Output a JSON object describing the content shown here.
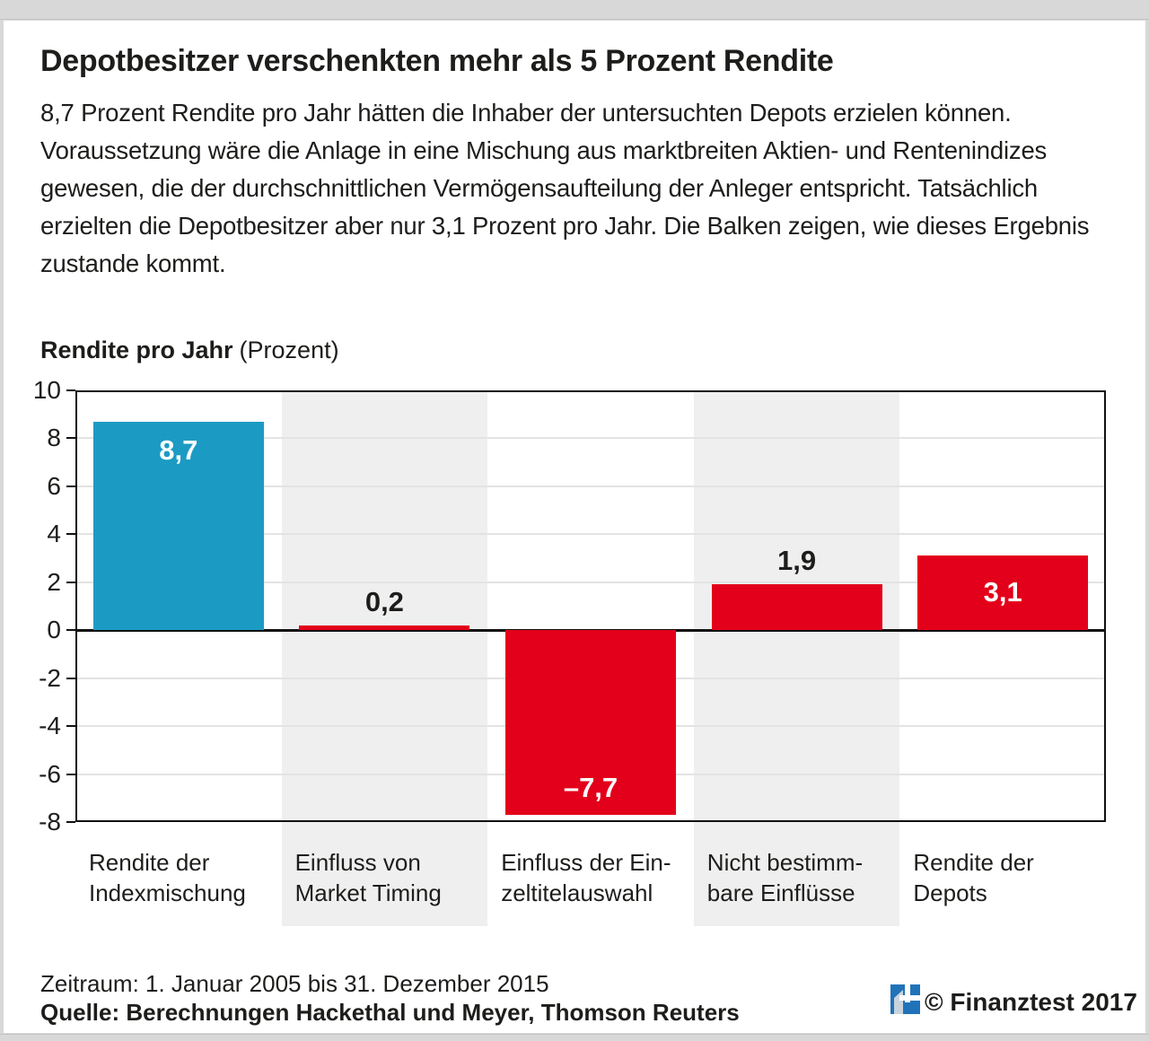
{
  "page": {
    "title": "Depotbesitzer verschenkten mehr als 5 Prozent Rendite",
    "intro": "8,7 Prozent Rendite pro Jahr hätten die Inhaber der untersuchten Depots erzie­len können. Voraussetzung wäre die Anlage in eine Mischung aus marktbreiten Aktien- und Rentenindizes gewesen, die der durchschnittlichen Vermögensauf­teilung der Anleger entspricht. Tatsächlich erzielten die Depotbesitzer aber nur 3,1 Prozent pro Jahr. Die Balken zeigen, wie dieses Ergebnis zustande kommt."
  },
  "chart_data": {
    "type": "bar",
    "title": "Rendite pro Jahr",
    "title_unit": "(Prozent)",
    "categories": [
      "Rendite der\nIndexmischung",
      "Einfluss von\nMarket Timing",
      "Einfluss der Ein-\nzeltitelauswahl",
      "Nicht bestimm-\nbare Einflüsse",
      "Rendite der\nDepots"
    ],
    "values": [
      8.7,
      0.2,
      -7.7,
      1.9,
      3.1
    ],
    "value_labels": [
      "8,7",
      "0,2",
      "–7,7",
      "1,9",
      "3,1"
    ],
    "bar_colors": [
      "#1b9bc3",
      "#e3001a",
      "#e3001a",
      "#e3001a",
      "#e3001a"
    ],
    "ylim": [
      -8,
      10
    ],
    "yticks": [
      10,
      8,
      6,
      4,
      2,
      0,
      -2,
      -4,
      -6,
      -8
    ],
    "shaded_columns": [
      1,
      3
    ],
    "grid": true,
    "legend": "none"
  },
  "footer": {
    "period": "Zeitraum: 1. Januar 2005 bis 31. Dezember 2015",
    "source": "Quelle: Berechnungen Hackethal und Meyer, Thomson Reuters",
    "copyright": "© Finanztest 2017",
    "logo_icon": "stiftung-warentest-logo"
  },
  "colors": {
    "bar_blue": "#1b9bc3",
    "bar_red": "#e3001a",
    "column_band_gray": "#efefef",
    "logo_blue": "#2173b9",
    "frame_gray": "#d8d8d8"
  }
}
